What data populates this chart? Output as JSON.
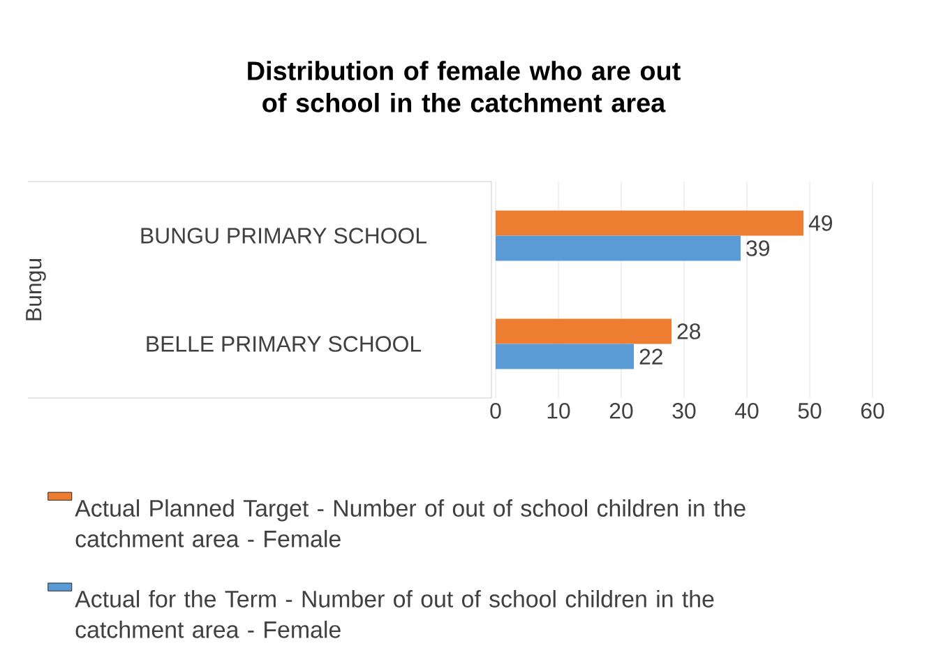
{
  "chart_data": {
    "type": "bar",
    "orientation": "horizontal",
    "title": "Distribution of female who are out of school in the catchment area",
    "ylabel": "Bungu",
    "categories": [
      "BUNGU PRIMARY SCHOOL",
      "BELLE PRIMARY SCHOOL"
    ],
    "series": [
      {
        "name": "Actual Planned Target - Number of out of school children in the catchment area - Female",
        "color": "#ed7d31",
        "values": [
          49,
          28
        ]
      },
      {
        "name": "Actual for the Term - Number of out of school children in the catchment area - Female",
        "color": "#5b9bd5",
        "values": [
          39,
          22
        ]
      }
    ],
    "xlim": [
      0,
      60
    ],
    "xticks": [
      0,
      10,
      20,
      30,
      40,
      50,
      60
    ],
    "grid": "x",
    "legend": "bottom",
    "data_labels": true
  }
}
